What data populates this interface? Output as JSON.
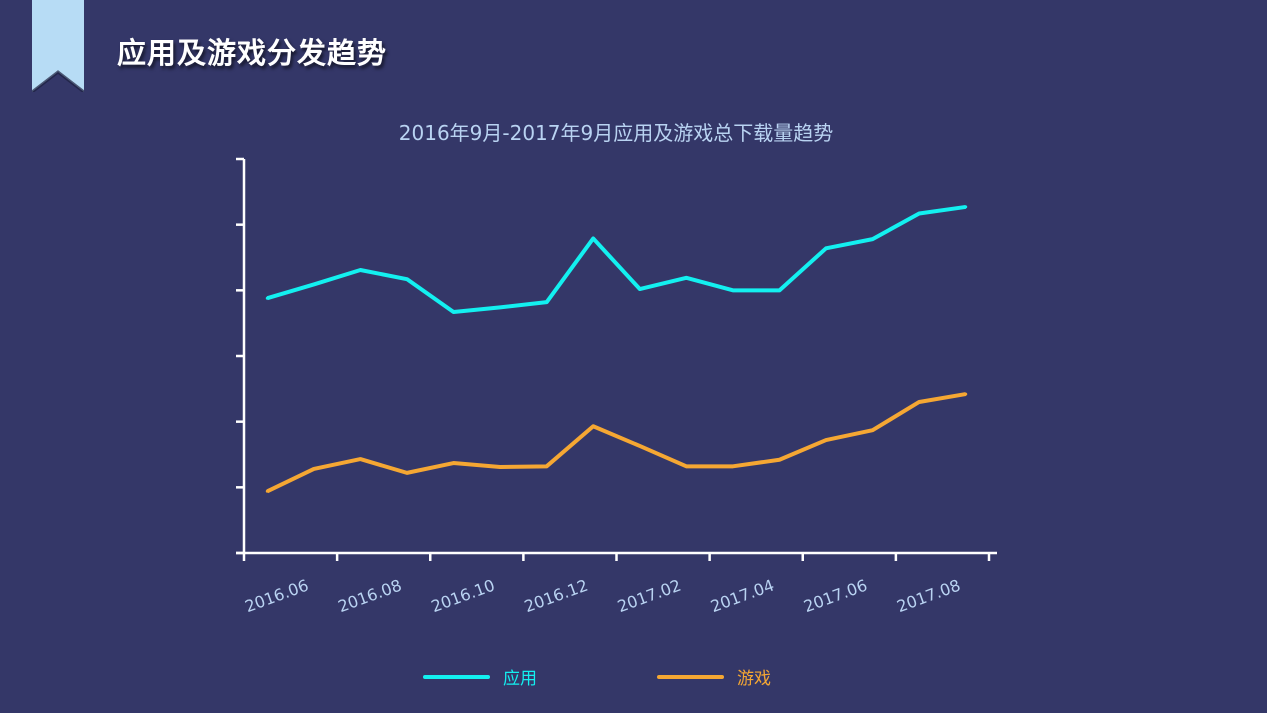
{
  "header": {
    "title": "应用及游戏分发趋势"
  },
  "chart_data": {
    "type": "line",
    "title": "2016年9月-2017年9月应用及游戏总下载量趋势",
    "tick_labels": [
      "2016.06",
      "2016.08",
      "2016.10",
      "2016.12",
      "2017.02",
      "2017.04",
      "2017.06",
      "2017.08"
    ],
    "points_per_tick": 2,
    "ylim": [
      0,
      6
    ],
    "y_tick_count": 7,
    "y_tick_labels_shown": false,
    "grid": false,
    "legend_position": "bottom",
    "series": [
      {
        "name": "应用",
        "color": "#13f0f0",
        "values": [
          3.88,
          4.09,
          4.31,
          4.17,
          3.67,
          3.74,
          3.82,
          4.79,
          4.02,
          4.19,
          4.0,
          4.0,
          4.64,
          4.78,
          5.17,
          5.27
        ]
      },
      {
        "name": "游戏",
        "color": "#f5a733",
        "values": [
          0.94,
          1.28,
          1.43,
          1.22,
          1.37,
          1.31,
          1.32,
          1.93,
          1.63,
          1.32,
          1.32,
          1.42,
          1.72,
          1.87,
          2.3,
          2.42
        ]
      }
    ]
  },
  "colors": {
    "background": "#343768",
    "ribbon": "#b7dcf5",
    "axis": "#ffffff",
    "tick_label": "#b9d3f2"
  }
}
